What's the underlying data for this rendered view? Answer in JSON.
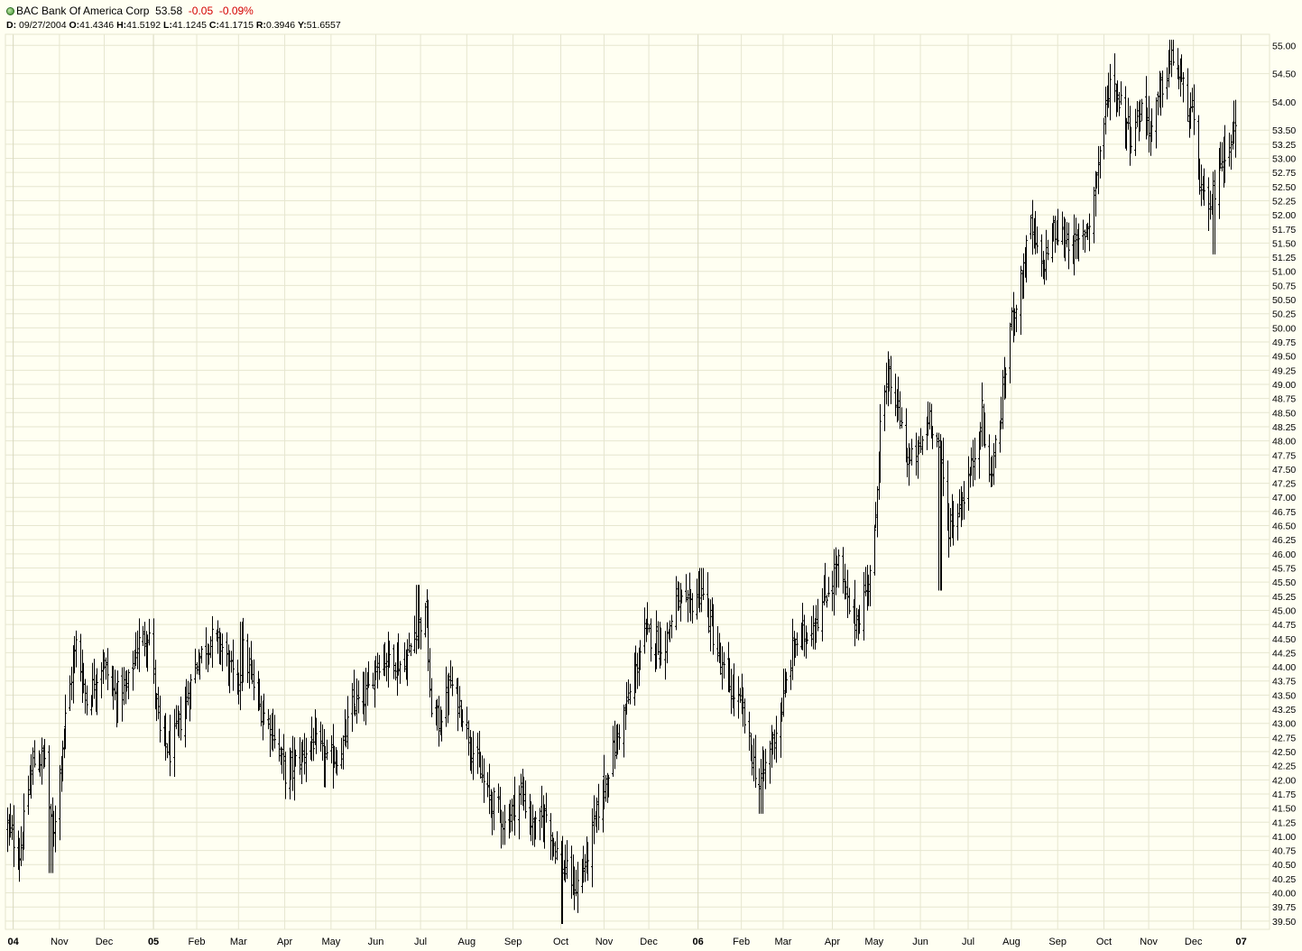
{
  "header": {
    "symbol": "BAC",
    "name": "Bank Of America Corp",
    "last": "53.58",
    "change": "-0.05",
    "change_pct": "-0.09%",
    "info": {
      "d_label": "D:",
      "d_value": "09/27/2004",
      "o_label": "O:",
      "o_value": "41.4346",
      "h_label": "H:",
      "h_value": "41.5192",
      "l_label": "L:",
      "l_value": "41.1245",
      "c_label": "C:",
      "c_value": "41.1715",
      "r_label": "R:",
      "r_value": "0.3946",
      "y_label": "Y:",
      "y_value": "51.6557"
    }
  },
  "colors": {
    "background": "#FFFFF2",
    "grid": "#E6E6CF",
    "bars": "#000000",
    "negative": "#D40000",
    "status": "#3b8f2c"
  },
  "chart_data": {
    "type": "ohlc-bar",
    "title": "BAC Bank Of America Corp",
    "xlabel": "",
    "ylabel": "",
    "ylim": [
      39.45,
      55.1
    ],
    "xrange": [
      "2004-09-27",
      "2006-12-29"
    ],
    "y_scale": "linear",
    "grid": true,
    "y_ticks": [
      "39.50",
      "39.75",
      "40.00",
      "40.25",
      "40.50",
      "40.75",
      "41.00",
      "41.25",
      "41.50",
      "41.75",
      "42.00",
      "42.25",
      "42.50",
      "42.75",
      "43.00",
      "43.25",
      "43.50",
      "43.75",
      "44.00",
      "44.25",
      "44.50",
      "44.75",
      "45.00",
      "45.25",
      "45.50",
      "45.75",
      "46.00",
      "46.25",
      "46.50",
      "46.75",
      "47.00",
      "47.25",
      "47.50",
      "47.75",
      "48.00",
      "48.25",
      "48.50",
      "48.75",
      "49.00",
      "49.25",
      "49.50",
      "49.75",
      "50.00",
      "50.25",
      "50.50",
      "50.75",
      "51.00",
      "51.25",
      "51.50",
      "51.75",
      "52.00",
      "52.25",
      "52.50",
      "52.75",
      "53.00",
      "53.25",
      "53.50",
      "54.00",
      "54.50",
      "55.00"
    ],
    "x_ticks": [
      {
        "label": "04",
        "date": "2004-10-01",
        "bold": true
      },
      {
        "label": "Nov",
        "date": "2004-11-01"
      },
      {
        "label": "Dec",
        "date": "2004-12-01"
      },
      {
        "label": "05",
        "date": "2005-01-03",
        "bold": true
      },
      {
        "label": "Feb",
        "date": "2005-02-01"
      },
      {
        "label": "Mar",
        "date": "2005-03-01"
      },
      {
        "label": "Apr",
        "date": "2005-04-01"
      },
      {
        "label": "May",
        "date": "2005-05-02"
      },
      {
        "label": "Jun",
        "date": "2005-06-01"
      },
      {
        "label": "Jul",
        "date": "2005-07-01"
      },
      {
        "label": "Aug",
        "date": "2005-08-01"
      },
      {
        "label": "Sep",
        "date": "2005-09-01"
      },
      {
        "label": "Oct",
        "date": "2005-10-03"
      },
      {
        "label": "Nov",
        "date": "2005-11-01"
      },
      {
        "label": "Dec",
        "date": "2005-12-01"
      },
      {
        "label": "06",
        "date": "2006-01-03",
        "bold": true
      },
      {
        "label": "Feb",
        "date": "2006-02-01"
      },
      {
        "label": "Mar",
        "date": "2006-03-01"
      },
      {
        "label": "Apr",
        "date": "2006-04-03"
      },
      {
        "label": "May",
        "date": "2006-05-01"
      },
      {
        "label": "Jun",
        "date": "2006-06-01"
      },
      {
        "label": "Jul",
        "date": "2006-07-03"
      },
      {
        "label": "Aug",
        "date": "2006-08-01"
      },
      {
        "label": "Sep",
        "date": "2006-09-01"
      },
      {
        "label": "Oct",
        "date": "2006-10-02"
      },
      {
        "label": "Nov",
        "date": "2006-11-01"
      },
      {
        "label": "Dec",
        "date": "2006-12-01"
      },
      {
        "label": "07",
        "date": "2007-01-02",
        "bold": true
      }
    ],
    "series": [
      {
        "close_path": [
          [
            "2004-09-27",
            41.17
          ],
          [
            "2004-10-05",
            40.7
          ],
          [
            "2004-10-14",
            42.3
          ],
          [
            "2004-10-22",
            42.4
          ],
          [
            "2004-10-27",
            40.9
          ],
          [
            "2004-11-04",
            42.9
          ],
          [
            "2004-11-12",
            44.4
          ],
          [
            "2004-11-19",
            43.4
          ],
          [
            "2004-11-30",
            44.1
          ],
          [
            "2004-12-08",
            43.5
          ],
          [
            "2004-12-16",
            43.6
          ],
          [
            "2004-12-23",
            44.4
          ],
          [
            "2004-12-31",
            44.6
          ],
          [
            "2005-01-07",
            42.8
          ],
          [
            "2005-01-14",
            42.5
          ],
          [
            "2005-01-24",
            43.3
          ],
          [
            "2005-02-01",
            44.1
          ],
          [
            "2005-02-10",
            44.5
          ],
          [
            "2005-02-17",
            44.4
          ],
          [
            "2005-02-28",
            43.6
          ],
          [
            "2005-03-04",
            44.3
          ],
          [
            "2005-03-15",
            43.3
          ],
          [
            "2005-03-24",
            42.9
          ],
          [
            "2005-04-01",
            42.1
          ],
          [
            "2005-04-11",
            42.4
          ],
          [
            "2005-04-20",
            42.7
          ],
          [
            "2005-04-29",
            42.3
          ],
          [
            "2005-05-09",
            42.5
          ],
          [
            "2005-05-16",
            43.3
          ],
          [
            "2005-05-26",
            43.5
          ],
          [
            "2005-06-01",
            44.1
          ],
          [
            "2005-06-10",
            44.2
          ],
          [
            "2005-06-20",
            44.0
          ],
          [
            "2005-06-28",
            44.7
          ],
          [
            "2005-07-05",
            44.9
          ],
          [
            "2005-07-07",
            43.4
          ],
          [
            "2005-07-13",
            43.0
          ],
          [
            "2005-07-21",
            43.7
          ],
          [
            "2005-07-29",
            43.2
          ],
          [
            "2005-08-05",
            42.5
          ],
          [
            "2005-08-15",
            41.7
          ],
          [
            "2005-08-22",
            41.5
          ],
          [
            "2005-08-26",
            41.2
          ],
          [
            "2005-09-06",
            41.8
          ],
          [
            "2005-09-15",
            41.1
          ],
          [
            "2005-09-23",
            41.4
          ],
          [
            "2005-09-29",
            40.8
          ],
          [
            "2005-10-06",
            40.4
          ],
          [
            "2005-10-13",
            40.1
          ],
          [
            "2005-10-20",
            40.6
          ],
          [
            "2005-10-27",
            41.4
          ],
          [
            "2005-11-03",
            42.1
          ],
          [
            "2005-11-10",
            42.8
          ],
          [
            "2005-11-18",
            43.5
          ],
          [
            "2005-11-28",
            44.6
          ],
          [
            "2005-12-05",
            44.5
          ],
          [
            "2005-12-12",
            44.4
          ],
          [
            "2005-12-19",
            45.2
          ],
          [
            "2005-12-27",
            45.0
          ],
          [
            "2006-01-04",
            45.4
          ],
          [
            "2006-01-11",
            44.8
          ],
          [
            "2006-01-18",
            44.0
          ],
          [
            "2006-01-25",
            43.6
          ],
          [
            "2006-02-01",
            43.3
          ],
          [
            "2006-02-07",
            42.5
          ],
          [
            "2006-02-13",
            41.9
          ],
          [
            "2006-02-21",
            42.6
          ],
          [
            "2006-02-28",
            43.3
          ],
          [
            "2006-03-08",
            44.4
          ],
          [
            "2006-03-16",
            44.6
          ],
          [
            "2006-03-24",
            44.9
          ],
          [
            "2006-03-31",
            45.4
          ],
          [
            "2006-04-07",
            45.8
          ],
          [
            "2006-04-13",
            45.1
          ],
          [
            "2006-04-20",
            44.8
          ],
          [
            "2006-04-27",
            45.6
          ],
          [
            "2006-05-02",
            46.5
          ],
          [
            "2006-05-05",
            48.5
          ],
          [
            "2006-05-11",
            49.1
          ],
          [
            "2006-05-17",
            48.5
          ],
          [
            "2006-05-24",
            47.6
          ],
          [
            "2006-05-31",
            47.8
          ],
          [
            "2006-06-07",
            48.5
          ],
          [
            "2006-06-13",
            47.9
          ],
          [
            "2006-06-20",
            46.5
          ],
          [
            "2006-06-27",
            46.8
          ],
          [
            "2006-07-05",
            47.5
          ],
          [
            "2006-07-12",
            48.5
          ],
          [
            "2006-07-17",
            47.3
          ],
          [
            "2006-07-24",
            48.3
          ],
          [
            "2006-07-31",
            50.0
          ],
          [
            "2006-08-07",
            50.8
          ],
          [
            "2006-08-14",
            51.8
          ],
          [
            "2006-08-21",
            51.0
          ],
          [
            "2006-08-28",
            51.7
          ],
          [
            "2006-09-06",
            51.6
          ],
          [
            "2006-09-14",
            51.4
          ],
          [
            "2006-09-22",
            51.9
          ],
          [
            "2006-09-29",
            53.1
          ],
          [
            "2006-10-06",
            54.4
          ],
          [
            "2006-10-13",
            54.0
          ],
          [
            "2006-10-20",
            53.4
          ],
          [
            "2006-10-27",
            53.9
          ],
          [
            "2006-11-03",
            53.5
          ],
          [
            "2006-11-10",
            54.3
          ],
          [
            "2006-11-17",
            54.8
          ],
          [
            "2006-11-24",
            54.2
          ],
          [
            "2006-11-30",
            53.7
          ],
          [
            "2006-12-05",
            52.6
          ],
          [
            "2006-12-11",
            51.9
          ],
          [
            "2006-12-18",
            52.9
          ],
          [
            "2006-12-29",
            53.58
          ]
        ],
        "highlights": [
          [
            "2004-10-26",
            40.35
          ],
          [
            "2005-03-03",
            44.8
          ],
          [
            "2005-06-29",
            45.45
          ],
          [
            "2005-10-03",
            39.45
          ],
          [
            "2006-01-05",
            45.75
          ],
          [
            "2006-02-14",
            41.4
          ],
          [
            "2006-06-14",
            45.35
          ],
          [
            "2006-11-16",
            55.1
          ],
          [
            "2006-12-15",
            51.3
          ]
        ]
      }
    ]
  }
}
